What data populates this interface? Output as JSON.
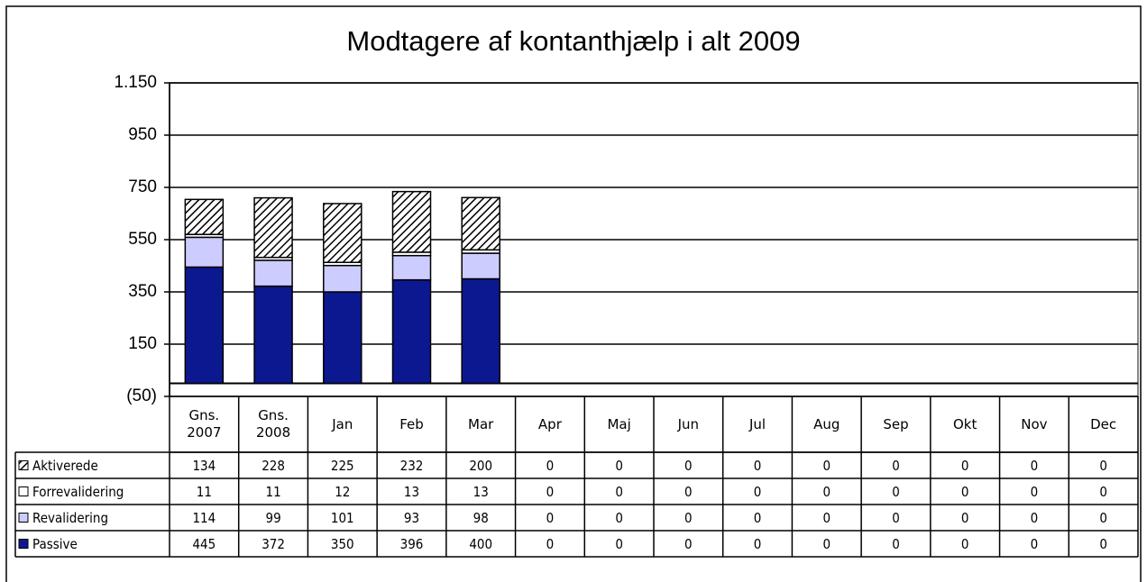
{
  "chart_data": {
    "type": "stacked_bar",
    "title": "Modtagere af kontanthjælp i alt 2009",
    "categories": [
      "Gns. 2007",
      "Gns. 2008",
      "Jan",
      "Feb",
      "Mar",
      "Apr",
      "Maj",
      "Jun",
      "Jul",
      "Aug",
      "Sep",
      "Okt",
      "Nov",
      "Dec"
    ],
    "series": [
      {
        "name": "Aktiverede",
        "color": "#000000",
        "pattern": "diagonal",
        "values": [
          134,
          228,
          225,
          232,
          200,
          0,
          0,
          0,
          0,
          0,
          0,
          0,
          0,
          0
        ]
      },
      {
        "name": "Forrevalidering",
        "color": "#ffffff",
        "values": [
          11,
          11,
          12,
          13,
          13,
          0,
          0,
          0,
          0,
          0,
          0,
          0,
          0,
          0
        ]
      },
      {
        "name": "Revalidering",
        "color": "#ccccff",
        "values": [
          114,
          99,
          101,
          93,
          98,
          0,
          0,
          0,
          0,
          0,
          0,
          0,
          0,
          0
        ]
      },
      {
        "name": "Passive",
        "color": "#0c1890",
        "values": [
          445,
          372,
          350,
          396,
          400,
          0,
          0,
          0,
          0,
          0,
          0,
          0,
          0,
          0
        ]
      }
    ],
    "ylim": [
      -50,
      1150
    ],
    "yticks": [
      {
        "value": -50,
        "label": "(50)"
      },
      150,
      350,
      550,
      750,
      950,
      {
        "value": 1150,
        "label": "1.150"
      }
    ],
    "grid": true,
    "data_table": true
  }
}
